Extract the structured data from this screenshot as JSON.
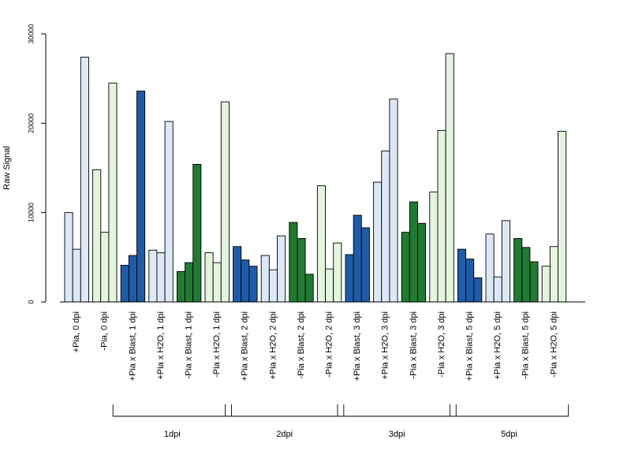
{
  "chart_data": {
    "type": "bar",
    "ylabel": "Raw Signal",
    "ylim": [
      0,
      30000
    ],
    "yticks": [
      0,
      10000,
      20000,
      30000
    ],
    "colors": {
      "pia_plus_light": "#dce8f5",
      "pia_minus_light": "#e3f5dd",
      "blast_plus": "#1f5ca8",
      "blast_minus": "#217a32"
    },
    "categories": [
      {
        "label": "+Pia, 0 dpi",
        "color": "pia_plus_light",
        "values": [
          10000,
          5900,
          27400
        ]
      },
      {
        "label": "-Pia, 0 dpi",
        "color": "pia_minus_light",
        "values": [
          14800,
          7800,
          24500
        ]
      },
      {
        "label": "+Pia x Blast, 1 dpi",
        "color": "blast_plus",
        "values": [
          4100,
          5200,
          23600
        ]
      },
      {
        "label": "+Pia x H2O, 1 dpi",
        "color": "pia_plus_light",
        "values": [
          5800,
          5500,
          20200
        ]
      },
      {
        "label": "-Pia x Blast, 1 dpi",
        "color": "blast_minus",
        "values": [
          3400,
          4400,
          15400
        ]
      },
      {
        "label": "-Pia x H2O, 1 dpi",
        "color": "pia_minus_light",
        "values": [
          5500,
          4400,
          22400
        ]
      },
      {
        "label": "+Pia x Blast, 2 dpi",
        "color": "blast_plus",
        "values": [
          6200,
          4700,
          4000
        ]
      },
      {
        "label": "+Pia x H2O, 2 dpi",
        "color": "pia_plus_light",
        "values": [
          5200,
          3600,
          7400
        ]
      },
      {
        "label": "-Pia x Blast, 2 dpi",
        "color": "blast_minus",
        "values": [
          8900,
          7100,
          3100
        ]
      },
      {
        "label": "-Pia x H2O, 2 dpi",
        "color": "pia_minus_light",
        "values": [
          13000,
          3700,
          6600
        ]
      },
      {
        "label": "+Pia x Blast, 3 dpi",
        "color": "blast_plus",
        "values": [
          5300,
          9700,
          8300
        ]
      },
      {
        "label": "+Pia x H2O, 3 dpi",
        "color": "pia_plus_light",
        "values": [
          13400,
          16900,
          22700
        ]
      },
      {
        "label": "-Pia x Blast, 3 dpi",
        "color": "blast_minus",
        "values": [
          7800,
          11200,
          8800
        ]
      },
      {
        "label": "-Pia x H2O, 3 dpi",
        "color": "pia_minus_light",
        "values": [
          12300,
          19200,
          27800
        ]
      },
      {
        "label": "+Pia x Blast, 5 dpi",
        "color": "blast_plus",
        "values": [
          5900,
          4800,
          2700
        ]
      },
      {
        "label": "+Pia x H2O, 5 dpi",
        "color": "pia_plus_light",
        "values": [
          7600,
          2800,
          9100
        ]
      },
      {
        "label": "-Pia x Blast, 5 dpi",
        "color": "blast_minus",
        "values": [
          7100,
          6100,
          4500
        ]
      },
      {
        "label": "-Pia x H2O, 5 dpi",
        "color": "pia_minus_light",
        "values": [
          4000,
          6200,
          19100
        ]
      }
    ],
    "groups": [
      {
        "label": "1dpi",
        "from": 2,
        "to": 5
      },
      {
        "label": "2dpi",
        "from": 6,
        "to": 9
      },
      {
        "label": "3dpi",
        "from": 10,
        "to": 13
      },
      {
        "label": "5dpi",
        "from": 14,
        "to": 17
      }
    ]
  }
}
